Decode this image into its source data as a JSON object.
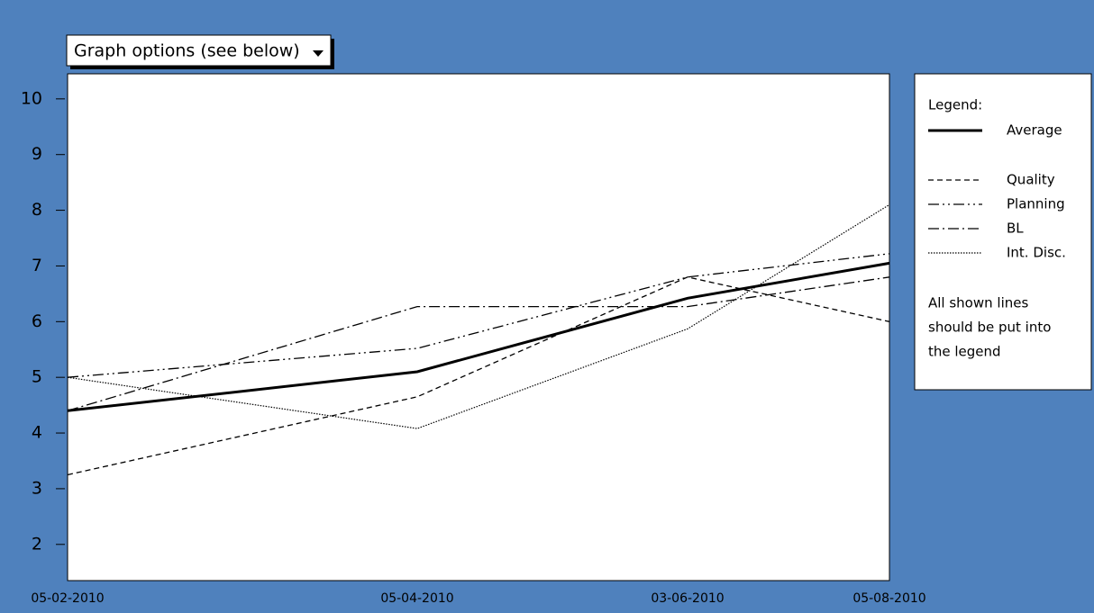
{
  "dropdown": {
    "label": "Graph options (see below)"
  },
  "chart_data": {
    "type": "line",
    "categories": [
      "05-02-2010",
      "05-04-2010",
      "03-06-2010",
      "05-08-2010"
    ],
    "ylim": [
      1.35,
      10.45
    ],
    "yticks": [
      2,
      3,
      4,
      5,
      6,
      7,
      8,
      9,
      10
    ],
    "series": [
      {
        "name": "Average",
        "color": "#000000",
        "values": [
          4.4,
          5.1,
          6.42,
          7.05
        ]
      },
      {
        "name": "Quality",
        "color": "#000000",
        "values": [
          3.25,
          4.65,
          6.8,
          6.0
        ]
      },
      {
        "name": "Planning",
        "color": "#000000",
        "values": [
          5.0,
          5.52,
          6.8,
          7.22
        ]
      },
      {
        "name": "BL",
        "color": "#000000",
        "values": [
          4.4,
          6.27,
          6.27,
          6.8
        ]
      },
      {
        "name": "Int. Disc.",
        "color": "#000000",
        "values": [
          5.0,
          4.08,
          5.87,
          8.1
        ]
      }
    ]
  },
  "legend": {
    "title": "Legend:",
    "note": [
      "All shown lines",
      "should be put into",
      "the legend"
    ]
  }
}
